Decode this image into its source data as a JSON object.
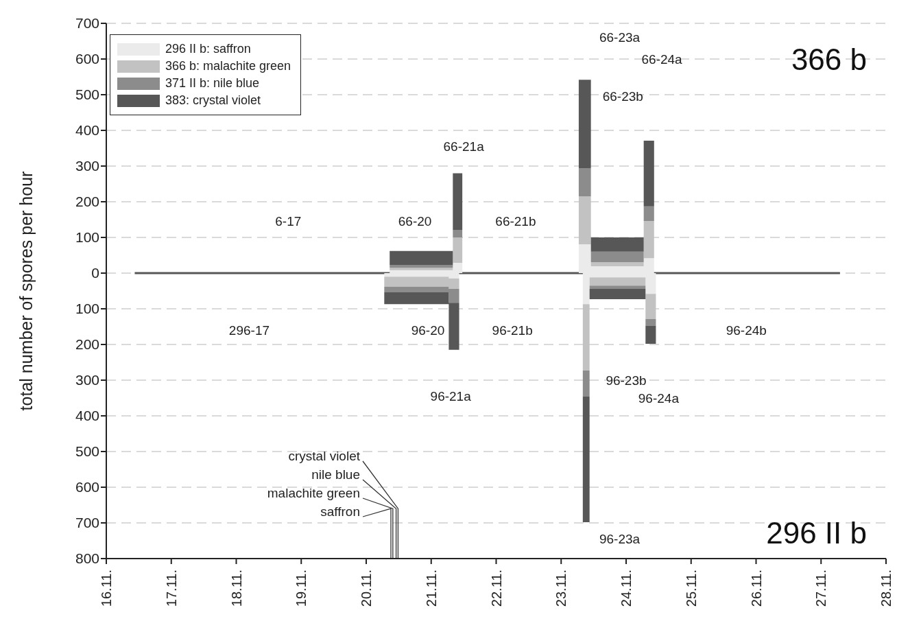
{
  "chart_data": [
    {
      "type": "area",
      "stacked": true,
      "ylabel": "total number of spores per hour",
      "tick_labels": "y",
      "xlim": [
        "--11-16",
        "--11-28"
      ],
      "ylim": [
        0,
        700
      ],
      "yticks": [
        0,
        100,
        200,
        300,
        400,
        500,
        600,
        700
      ],
      "grid": "y",
      "legend": "top left",
      "series": [
        {
          "name": "296 II b: saffron",
          "color": "#ebebeb",
          "x": [
            "--11-16T10:30",
            "--11-20T08:40",
            "--11-20T08:40",
            "--11-21T08:00",
            "--11-21T08:00",
            "--11-21T11:30",
            "--11-21T11:30",
            "--11-23T06:30",
            "--11-23T06:30",
            "--11-23T11:00",
            "--11-23T11:00",
            "--11-24T06:30",
            "--11-24T06:30",
            "--11-24T10:20",
            "--11-24T10:20",
            "--11-27T07:00",
            "--11-27T07:00"
          ],
          "values": [
            0,
            0,
            8,
            8,
            29,
            29,
            0,
            0,
            81,
            81,
            19,
            19,
            42,
            42,
            0,
            0,
            0
          ]
        },
        {
          "name": "366 b: malachite green",
          "color": "#c2c2c2",
          "x": [
            "--11-16T10:30",
            "--11-20T08:40",
            "--11-20T08:40",
            "--11-21T08:00",
            "--11-21T08:00",
            "--11-21T11:30",
            "--11-21T11:30",
            "--11-23T06:30",
            "--11-23T06:30",
            "--11-23T11:00",
            "--11-23T11:00",
            "--11-24T06:30",
            "--11-24T06:30",
            "--11-24T10:20",
            "--11-24T10:20",
            "--11-27T07:00",
            "--11-27T07:00"
          ],
          "values": [
            0,
            0,
            7,
            7,
            71,
            71,
            0,
            0,
            134,
            134,
            12,
            12,
            104,
            104,
            0,
            0,
            0
          ]
        },
        {
          "name": "371 II b: nile blue",
          "color": "#8c8c8c",
          "x": [
            "--11-16T10:30",
            "--11-20T08:40",
            "--11-20T08:40",
            "--11-21T08:00",
            "--11-21T08:00",
            "--11-21T11:30",
            "--11-21T11:30",
            "--11-23T06:30",
            "--11-23T06:30",
            "--11-23T11:00",
            "--11-23T11:00",
            "--11-24T06:30",
            "--11-24T06:30",
            "--11-24T10:20",
            "--11-24T10:20",
            "--11-27T07:00",
            "--11-27T07:00"
          ],
          "values": [
            0,
            0,
            7,
            7,
            21,
            21,
            0,
            0,
            79,
            79,
            29,
            29,
            41,
            41,
            0,
            0,
            0
          ]
        },
        {
          "name": "383: crystal violet",
          "color": "#575757",
          "x": [
            "--11-16T10:30",
            "--11-20T08:40",
            "--11-20T08:40",
            "--11-21T08:00",
            "--11-21T08:00",
            "--11-21T11:30",
            "--11-21T11:30",
            "--11-23T06:30",
            "--11-23T06:30",
            "--11-23T11:00",
            "--11-23T11:00",
            "--11-24T06:30",
            "--11-24T06:30",
            "--11-24T10:20",
            "--11-24T10:20",
            "--11-27T07:00",
            "--11-27T07:00"
          ],
          "values": [
            3,
            3,
            40,
            40,
            159,
            159,
            3,
            3,
            248,
            248,
            40,
            40,
            184,
            184,
            3,
            3,
            0
          ]
        }
      ],
      "annotations": [
        "66-23a",
        "66-24a",
        "66-23b",
        "66-21a",
        "6-17",
        "66-20",
        "66-21b",
        "366 b"
      ]
    },
    {
      "type": "area",
      "stacked": true,
      "xlim": [
        "--11-16",
        "--11-28"
      ],
      "xticks": [
        {
          "value": "--11-16",
          "label": "16.11."
        },
        {
          "value": "--11-17",
          "label": "17.11."
        },
        {
          "value": "--11-18",
          "label": "18.11."
        },
        {
          "value": "--11-19",
          "label": "19.11."
        },
        {
          "value": "--11-20",
          "label": "20.11."
        },
        {
          "value": "--11-21",
          "label": "21.11."
        },
        {
          "value": "--11-22",
          "label": "22.11."
        },
        {
          "value": "--11-23",
          "label": "23.11."
        },
        {
          "value": "--11-24",
          "label": "24.11."
        },
        {
          "value": "--11-25",
          "label": "25.11."
        },
        {
          "value": "--11-26",
          "label": "26.11."
        },
        {
          "value": "--11-27",
          "label": "27.11."
        },
        {
          "value": "--11-28",
          "label": "28.11."
        }
      ],
      "ylim": [
        800,
        0
      ],
      "yticks": [
        100,
        200,
        300,
        400,
        500,
        600,
        700,
        800
      ],
      "grid": "y",
      "series": [
        {
          "color": "#ebebeb",
          "x": [
            "--11-16T10:30",
            "--11-20T06:40",
            "--11-20T06:40",
            "--11-21T06:30",
            "--11-21T06:30",
            "--11-21T10:20",
            "--11-21T10:20",
            "--11-23T08:00",
            "--11-23T08:00",
            "--11-23T10:30",
            "--11-23T10:30",
            "--11-24T07:10",
            "--11-24T07:10",
            "--11-24T11:00",
            "--11-24T11:00",
            "--11-27T07:00",
            "--11-27T07:00"
          ],
          "values": [
            0,
            0,
            10,
            10,
            15,
            15,
            0,
            0,
            87,
            87,
            12,
            12,
            58,
            58,
            0,
            0,
            0
          ]
        },
        {
          "color": "#c2c2c2",
          "x": [
            "--11-16T10:30",
            "--11-20T06:40",
            "--11-20T06:40",
            "--11-21T06:30",
            "--11-21T06:30",
            "--11-21T10:20",
            "--11-21T10:20",
            "--11-23T08:00",
            "--11-23T08:00",
            "--11-23T10:30",
            "--11-23T10:30",
            "--11-24T07:10",
            "--11-24T07:10",
            "--11-24T11:00",
            "--11-24T11:00",
            "--11-27T07:00",
            "--11-27T07:00"
          ],
          "values": [
            0,
            0,
            28,
            28,
            29,
            29,
            0,
            0,
            186,
            186,
            23,
            23,
            71,
            71,
            0,
            0,
            0
          ]
        },
        {
          "color": "#8c8c8c",
          "x": [
            "--11-16T10:30",
            "--11-20T06:40",
            "--11-20T06:40",
            "--11-21T06:30",
            "--11-21T06:30",
            "--11-21T10:20",
            "--11-21T10:20",
            "--11-23T08:00",
            "--11-23T08:00",
            "--11-23T10:30",
            "--11-23T10:30",
            "--11-24T07:10",
            "--11-24T07:10",
            "--11-24T11:00",
            "--11-24T11:00",
            "--11-27T07:00",
            "--11-27T07:00"
          ],
          "values": [
            0,
            0,
            16,
            16,
            39,
            39,
            0,
            0,
            73,
            73,
            9,
            9,
            19,
            19,
            0,
            0,
            0
          ]
        },
        {
          "color": "#575757",
          "x": [
            "--11-16T10:30",
            "--11-20T06:40",
            "--11-20T06:40",
            "--11-21T06:30",
            "--11-21T06:30",
            "--11-21T10:20",
            "--11-21T10:20",
            "--11-23T08:00",
            "--11-23T08:00",
            "--11-23T10:30",
            "--11-23T10:30",
            "--11-24T07:10",
            "--11-24T07:10",
            "--11-24T11:00",
            "--11-24T11:00",
            "--11-27T07:00",
            "--11-27T07:00"
          ],
          "values": [
            3,
            3,
            33,
            33,
            132,
            132,
            3,
            3,
            352,
            352,
            29,
            29,
            50,
            50,
            3,
            3,
            0
          ]
        }
      ],
      "annotations": [
        "296-17",
        "96-20",
        "96-21b",
        "96-24b",
        "96-23b",
        "96-21a",
        "96-24a",
        "96-23a",
        "296 II b",
        "crystal violet",
        "nile blue",
        "malachite green",
        "saffron"
      ]
    }
  ]
}
